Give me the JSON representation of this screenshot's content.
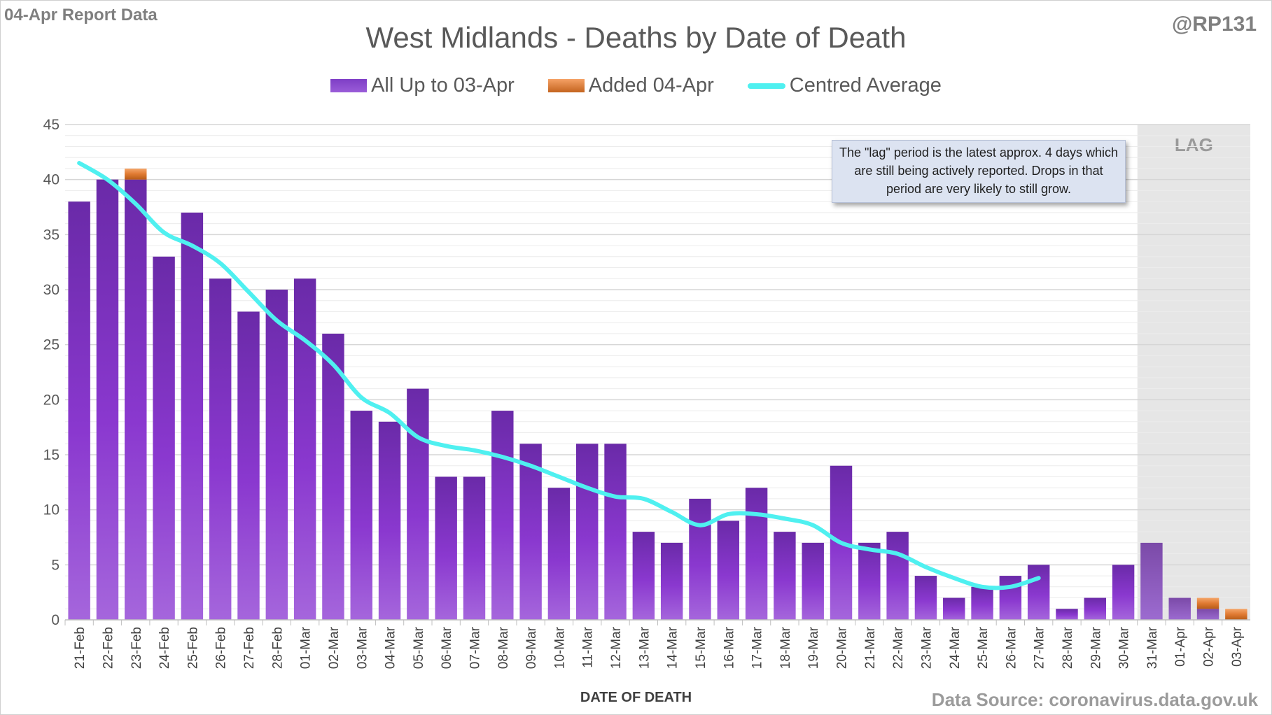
{
  "corner_left": "04-Apr Report Data",
  "corner_right": "@RP131",
  "source": "Data Source: coronavirus.data.gov.uk",
  "note": "The \"lag\" period is the latest approx. 4 days which are still being actively reported. Drops in that period are very likely to still grow.",
  "lag_label": "LAG",
  "legend": {
    "base": "All Up to 03-Apr",
    "added": "Added 04-Apr",
    "avg": "Centred Average"
  },
  "colors": {
    "bar": "#8132c6",
    "bar_lag": "#8b58bd",
    "added": "#e07a32",
    "avg": "#4ff0f0",
    "lag_bg": "#e6e6e6",
    "grid": "#e3e3e3"
  },
  "chart_data": {
    "type": "bar",
    "title": "West Midlands - Deaths by Date of Death",
    "xlabel": "DATE OF DEATH",
    "ylabel": "",
    "ylim": [
      0,
      45
    ],
    "yticks": [
      0,
      5,
      10,
      15,
      20,
      25,
      30,
      35,
      40,
      45
    ],
    "grid": true,
    "legend_position": "top",
    "stacked": true,
    "categories": [
      "21-Feb",
      "22-Feb",
      "23-Feb",
      "24-Feb",
      "25-Feb",
      "26-Feb",
      "27-Feb",
      "28-Feb",
      "01-Mar",
      "02-Mar",
      "03-Mar",
      "04-Mar",
      "05-Mar",
      "06-Mar",
      "07-Mar",
      "08-Mar",
      "09-Mar",
      "10-Mar",
      "11-Mar",
      "12-Mar",
      "13-Mar",
      "14-Mar",
      "15-Mar",
      "16-Mar",
      "17-Mar",
      "18-Mar",
      "19-Mar",
      "20-Mar",
      "21-Mar",
      "22-Mar",
      "23-Mar",
      "24-Mar",
      "25-Mar",
      "26-Mar",
      "27-Mar",
      "28-Mar",
      "29-Mar",
      "30-Mar",
      "31-Mar",
      "01-Apr",
      "02-Apr",
      "03-Apr"
    ],
    "lag_start": "31-Mar",
    "series": [
      {
        "name": "All Up to 03-Apr",
        "type": "bar",
        "values": [
          38,
          40,
          40,
          33,
          37,
          31,
          28,
          30,
          31,
          26,
          19,
          18,
          21,
          13,
          13,
          19,
          16,
          12,
          16,
          16,
          8,
          7,
          11,
          9,
          12,
          8,
          7,
          14,
          7,
          8,
          4,
          2,
          3,
          4,
          5,
          1,
          2,
          5,
          7,
          2,
          1,
          0
        ]
      },
      {
        "name": "Added 04-Apr",
        "type": "bar",
        "values": [
          0,
          0,
          1,
          0,
          0,
          0,
          0,
          0,
          0,
          0,
          0,
          0,
          0,
          0,
          0,
          0,
          0,
          0,
          0,
          0,
          0,
          0,
          0,
          0,
          0,
          0,
          0,
          0,
          0,
          0,
          0,
          0,
          0,
          0,
          0,
          0,
          0,
          0,
          0,
          0,
          1,
          1
        ]
      },
      {
        "name": "Centred Average",
        "type": "line",
        "values": [
          41.5,
          40,
          37.8,
          35.2,
          34,
          32.4,
          29.8,
          27.2,
          25.4,
          23.2,
          20.2,
          18.8,
          16.6,
          15.8,
          15.4,
          14.8,
          14,
          13,
          12,
          11.2,
          11,
          9.8,
          8.6,
          9.6,
          9.6,
          9.2,
          8.6,
          7,
          6.4,
          6,
          4.8,
          3.8,
          3,
          3,
          3.8,
          null,
          null,
          null,
          null,
          null,
          null,
          null
        ]
      }
    ]
  }
}
